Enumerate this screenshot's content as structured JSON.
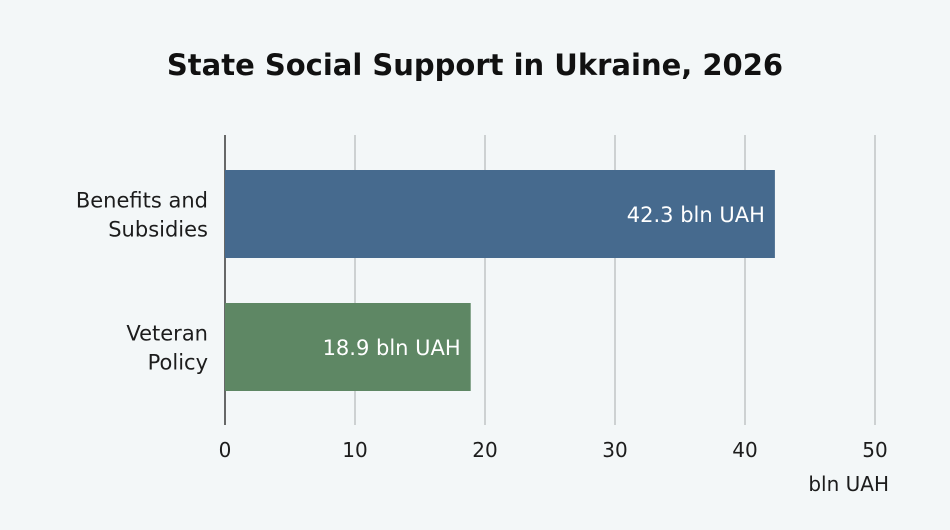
{
  "chart_data": {
    "type": "bar",
    "orientation": "horizontal",
    "title": "State Social Support in Ukraine, 2026",
    "categories": [
      [
        "Benefits and",
        "Subsidies"
      ],
      [
        "Veteran",
        "Policy"
      ]
    ],
    "values": [
      42.3,
      18.9
    ],
    "data_labels": [
      "42.3 bln UAH",
      "18.9 bln UAH"
    ],
    "colors": [
      "#466a8e",
      "#5e8764"
    ],
    "x_ticks": [
      "0",
      "10",
      "20",
      "30",
      "40",
      "50"
    ],
    "xlim": [
      0,
      50
    ],
    "xlabel": "bln UAH",
    "grid": true,
    "legend": "none"
  }
}
